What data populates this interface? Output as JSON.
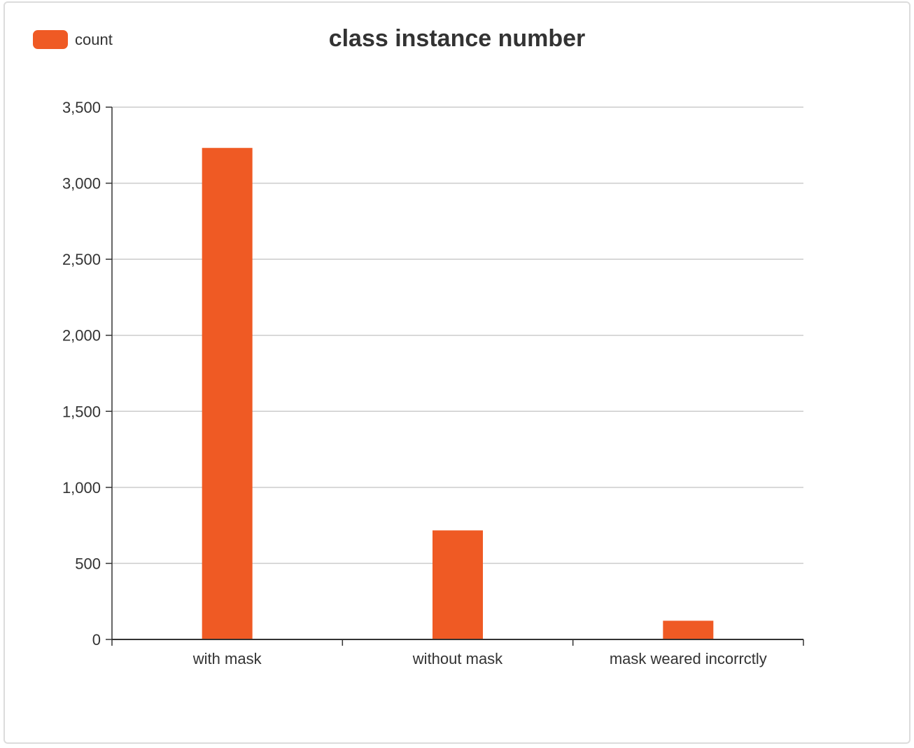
{
  "chart_data": {
    "type": "bar",
    "title": "class instance number",
    "categories": [
      "with mask",
      "without mask",
      "mask weared incorrctly"
    ],
    "series": [
      {
        "name": "count",
        "values": [
          3232,
          717,
          123
        ]
      }
    ],
    "ylim": [
      0,
      3500
    ],
    "yticks": [
      0,
      500,
      1000,
      1500,
      2000,
      2500,
      3000,
      3500
    ],
    "ytick_labels": [
      "0",
      "500",
      "1,000",
      "1,500",
      "2,000",
      "2,500",
      "3,000",
      "3,500"
    ],
    "xlabel": "",
    "ylabel": "",
    "grid": true,
    "legend_position": "top-left",
    "colors": {
      "bar": "#ef5a24",
      "grid": "#cccccc",
      "axis": "#333333"
    }
  }
}
